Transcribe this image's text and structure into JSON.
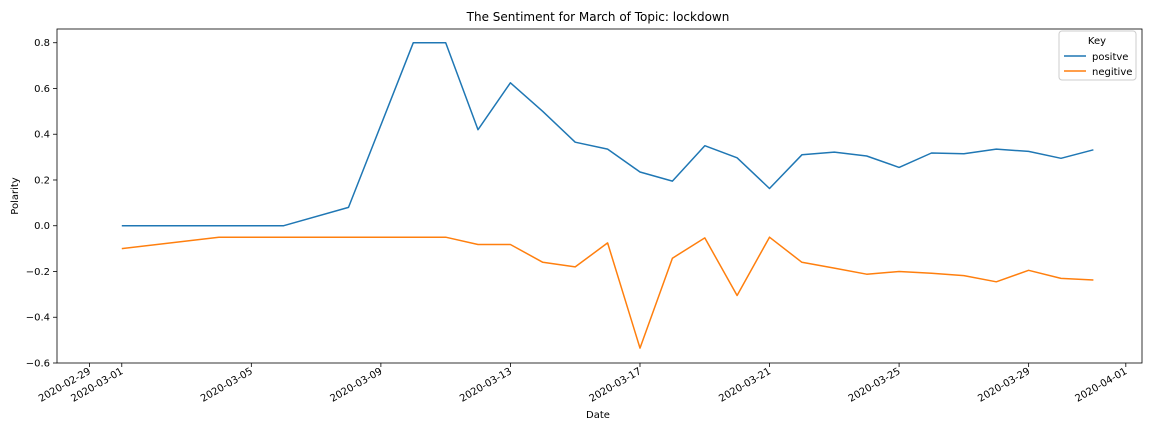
{
  "chart_data": {
    "type": "line",
    "title": "The Sentiment for March of Topic: lockdown",
    "xlabel": "Date",
    "ylabel": "Polarity",
    "xlim": [
      "2020-02-28T00:00",
      "2020-04-01T12:00"
    ],
    "ylim": [
      -0.6,
      0.86
    ],
    "x_ticks": [
      "2020-02-29",
      "2020-03-01",
      "2020-03-05",
      "2020-03-09",
      "2020-03-13",
      "2020-03-17",
      "2020-03-21",
      "2020-03-25",
      "2020-03-29",
      "2020-04-01"
    ],
    "y_ticks": [
      -0.6,
      -0.4,
      -0.2,
      0.0,
      0.2,
      0.4,
      0.6,
      0.8
    ],
    "y_tick_labels": [
      "−0.6",
      "−0.4",
      "−0.2",
      "0.0",
      "0.2",
      "0.4",
      "0.6",
      "0.8"
    ],
    "grid": false,
    "legend": {
      "title": "Key",
      "position": "top-right"
    },
    "series": [
      {
        "name": "positve",
        "color": "#1f77b4",
        "points": [
          [
            "2020-03-01",
            0.0
          ],
          [
            "2020-03-06",
            0.0
          ],
          [
            "2020-03-08",
            0.08
          ],
          [
            "2020-03-10",
            0.8
          ],
          [
            "2020-03-11",
            0.8
          ],
          [
            "2020-03-12",
            0.42
          ],
          [
            "2020-03-13",
            0.625
          ],
          [
            "2020-03-14",
            0.5
          ],
          [
            "2020-03-15",
            0.365
          ],
          [
            "2020-03-16",
            0.335
          ],
          [
            "2020-03-17",
            0.235
          ],
          [
            "2020-03-18",
            0.195
          ],
          [
            "2020-03-19",
            0.35
          ],
          [
            "2020-03-20",
            0.297
          ],
          [
            "2020-03-21",
            0.163
          ],
          [
            "2020-03-22",
            0.31
          ],
          [
            "2020-03-23",
            0.322
          ],
          [
            "2020-03-24",
            0.305
          ],
          [
            "2020-03-25",
            0.255
          ],
          [
            "2020-03-26",
            0.318
          ],
          [
            "2020-03-27",
            0.315
          ],
          [
            "2020-03-28",
            0.335
          ],
          [
            "2020-03-29",
            0.325
          ],
          [
            "2020-03-30",
            0.295
          ],
          [
            "2020-03-31",
            0.332
          ]
        ]
      },
      {
        "name": "negitive",
        "color": "#ff7f0e",
        "points": [
          [
            "2020-03-01",
            -0.1
          ],
          [
            "2020-03-04",
            -0.05
          ],
          [
            "2020-03-11",
            -0.05
          ],
          [
            "2020-03-12",
            -0.082
          ],
          [
            "2020-03-13",
            -0.082
          ],
          [
            "2020-03-14",
            -0.16
          ],
          [
            "2020-03-15",
            -0.18
          ],
          [
            "2020-03-16",
            -0.075
          ],
          [
            "2020-03-17",
            -0.535
          ],
          [
            "2020-03-18",
            -0.142
          ],
          [
            "2020-03-19",
            -0.053
          ],
          [
            "2020-03-20",
            -0.305
          ],
          [
            "2020-03-21",
            -0.05
          ],
          [
            "2020-03-22",
            -0.16
          ],
          [
            "2020-03-23",
            -0.185
          ],
          [
            "2020-03-24",
            -0.212
          ],
          [
            "2020-03-25",
            -0.2
          ],
          [
            "2020-03-26",
            -0.208
          ],
          [
            "2020-03-27",
            -0.218
          ],
          [
            "2020-03-28",
            -0.245
          ],
          [
            "2020-03-29",
            -0.195
          ],
          [
            "2020-03-30",
            -0.23
          ],
          [
            "2020-03-31",
            -0.237
          ]
        ]
      }
    ]
  }
}
